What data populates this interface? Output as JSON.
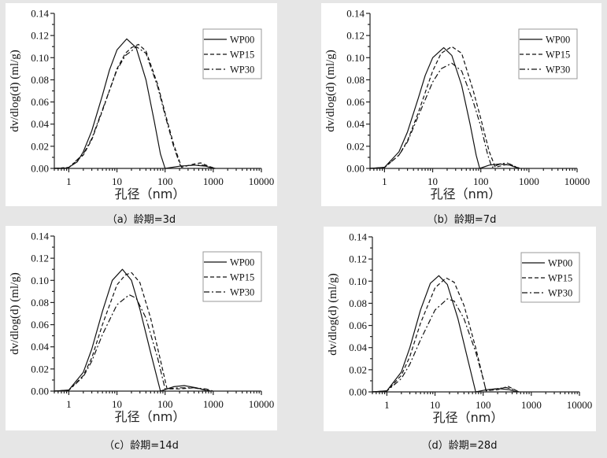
{
  "chart_data": [
    {
      "type": "line",
      "caption": "（a）龄期=3d",
      "xlabel": "孔径（nm）",
      "ylabel": "dv/dlog(d) (ml/g)",
      "xscale": "log",
      "xlim": [
        0.5,
        10000
      ],
      "ylim": [
        0,
        0.14
      ],
      "xticks": [
        "1",
        "10",
        "100",
        "1000",
        "10000"
      ],
      "yticks": [
        "0.00",
        "0.02",
        "0.04",
        "0.06",
        "0.08",
        "0.10",
        "0.12",
        "0.14"
      ],
      "legend_position": "top-right",
      "series": [
        {
          "name": "WP00",
          "style": "solid",
          "points": [
            [
              0.5,
              0
            ],
            [
              0.8,
              0
            ],
            [
              1,
              0.001
            ],
            [
              1.5,
              0.006
            ],
            [
              2,
              0.015
            ],
            [
              3,
              0.034
            ],
            [
              5,
              0.066
            ],
            [
              7,
              0.089
            ],
            [
              10,
              0.107
            ],
            [
              16,
              0.117
            ],
            [
              25,
              0.109
            ],
            [
              40,
              0.08
            ],
            [
              60,
              0.042
            ],
            [
              80,
              0.013
            ],
            [
              100,
              0
            ],
            [
              200,
              0.002
            ],
            [
              400,
              0.003
            ],
            [
              700,
              0.002
            ],
            [
              1000,
              0
            ]
          ]
        },
        {
          "name": "WP15",
          "style": "dash",
          "points": [
            [
              0.5,
              0
            ],
            [
              1,
              0.0008
            ],
            [
              2,
              0.012
            ],
            [
              3,
              0.026
            ],
            [
              5,
              0.052
            ],
            [
              10,
              0.09
            ],
            [
              15,
              0.104
            ],
            [
              20,
              0.109
            ],
            [
              28,
              0.112
            ],
            [
              40,
              0.106
            ],
            [
              70,
              0.076
            ],
            [
              100,
              0.05
            ],
            [
              150,
              0.022
            ],
            [
              220,
              0.001
            ],
            [
              400,
              0.004
            ],
            [
              550,
              0.005
            ],
            [
              800,
              0.002
            ],
            [
              1100,
              0
            ]
          ]
        },
        {
          "name": "WP30",
          "style": "dashdot",
          "points": [
            [
              0.5,
              0
            ],
            [
              1,
              0.0008
            ],
            [
              2,
              0.013
            ],
            [
              3,
              0.027
            ],
            [
              5,
              0.053
            ],
            [
              10,
              0.089
            ],
            [
              15,
              0.102
            ],
            [
              20,
              0.106
            ],
            [
              25,
              0.11
            ],
            [
              40,
              0.104
            ],
            [
              70,
              0.074
            ],
            [
              100,
              0.048
            ],
            [
              150,
              0.02
            ],
            [
              210,
              0.002
            ],
            [
              400,
              0.003
            ],
            [
              600,
              0.003
            ],
            [
              900,
              0.001
            ],
            [
              1100,
              0
            ]
          ]
        }
      ]
    },
    {
      "type": "line",
      "caption": "（b）龄期=7d",
      "xlabel": "孔径（nm）",
      "ylabel": "dv/dlog(d) (ml/g)",
      "xscale": "log",
      "xlim": [
        0.5,
        10000
      ],
      "ylim": [
        0,
        0.14
      ],
      "xticks": [
        "1",
        "10",
        "100",
        "1000",
        "10000"
      ],
      "yticks": [
        "0.00",
        "0.02",
        "0.04",
        "0.06",
        "0.08",
        "0.10",
        "0.12",
        "0.14"
      ],
      "legend_position": "top-right",
      "series": [
        {
          "name": "WP00",
          "style": "solid",
          "points": [
            [
              0.5,
              0
            ],
            [
              1,
              0.001
            ],
            [
              2,
              0.015
            ],
            [
              3,
              0.033
            ],
            [
              5,
              0.063
            ],
            [
              7,
              0.084
            ],
            [
              10,
              0.1
            ],
            [
              17,
              0.109
            ],
            [
              25,
              0.102
            ],
            [
              40,
              0.075
            ],
            [
              60,
              0.04
            ],
            [
              80,
              0.012
            ],
            [
              95,
              0
            ],
            [
              150,
              0.003
            ],
            [
              250,
              0.004
            ],
            [
              400,
              0.003
            ],
            [
              600,
              0
            ]
          ]
        },
        {
          "name": "WP15",
          "style": "dash",
          "points": [
            [
              0.5,
              0
            ],
            [
              1,
              0.0008
            ],
            [
              2,
              0.012
            ],
            [
              3,
              0.025
            ],
            [
              5,
              0.05
            ],
            [
              10,
              0.088
            ],
            [
              15,
              0.104
            ],
            [
              25,
              0.11
            ],
            [
              40,
              0.104
            ],
            [
              70,
              0.07
            ],
            [
              100,
              0.045
            ],
            [
              150,
              0.015
            ],
            [
              200,
              0.001
            ],
            [
              300,
              0.003
            ],
            [
              400,
              0.004
            ],
            [
              550,
              0.001
            ],
            [
              700,
              0
            ]
          ]
        },
        {
          "name": "WP30",
          "style": "dashdot",
          "points": [
            [
              0.5,
              0
            ],
            [
              1,
              0.0008
            ],
            [
              2,
              0.012
            ],
            [
              3,
              0.024
            ],
            [
              5,
              0.047
            ],
            [
              10,
              0.078
            ],
            [
              15,
              0.09
            ],
            [
              25,
              0.095
            ],
            [
              40,
              0.088
            ],
            [
              70,
              0.06
            ],
            [
              100,
              0.038
            ],
            [
              140,
              0.012
            ],
            [
              170,
              0.001
            ],
            [
              250,
              0.004
            ],
            [
              350,
              0.005
            ],
            [
              500,
              0.002
            ],
            [
              650,
              0
            ]
          ]
        }
      ]
    },
    {
      "type": "line",
      "caption": "（c）龄期=14d",
      "xlabel": "孔径（nm）",
      "ylabel": "dv/dlog(d) (ml/g)",
      "xscale": "log",
      "xlim": [
        0.5,
        10000
      ],
      "ylim": [
        0,
        0.14
      ],
      "xticks": [
        "1",
        "10",
        "100",
        "1000",
        "10000"
      ],
      "yticks": [
        "0.00",
        "0.02",
        "0.04",
        "0.06",
        "0.08",
        "0.10",
        "0.12",
        "0.14"
      ],
      "legend_position": "top-right",
      "series": [
        {
          "name": "WP00",
          "style": "solid",
          "points": [
            [
              0.5,
              0
            ],
            [
              1,
              0.001
            ],
            [
              2,
              0.017
            ],
            [
              3,
              0.038
            ],
            [
              5,
              0.072
            ],
            [
              8,
              0.1
            ],
            [
              13,
              0.11
            ],
            [
              20,
              0.1
            ],
            [
              30,
              0.074
            ],
            [
              50,
              0.035
            ],
            [
              70,
              0.01
            ],
            [
              80,
              0
            ],
            [
              150,
              0.004
            ],
            [
              250,
              0.005
            ],
            [
              450,
              0.003
            ],
            [
              800,
              0
            ]
          ]
        },
        {
          "name": "WP15",
          "style": "dash",
          "points": [
            [
              0.5,
              0
            ],
            [
              1,
              0.0008
            ],
            [
              2,
              0.014
            ],
            [
              3,
              0.03
            ],
            [
              5,
              0.06
            ],
            [
              10,
              0.096
            ],
            [
              15,
              0.105
            ],
            [
              20,
              0.107
            ],
            [
              30,
              0.098
            ],
            [
              50,
              0.066
            ],
            [
              80,
              0.028
            ],
            [
              110,
              0.002
            ],
            [
              200,
              0.002
            ],
            [
              400,
              0.003
            ],
            [
              700,
              0.001
            ],
            [
              900,
              0
            ]
          ]
        },
        {
          "name": "WP30",
          "style": "dashdot",
          "points": [
            [
              0.5,
              0
            ],
            [
              1,
              0.0008
            ],
            [
              2,
              0.013
            ],
            [
              3,
              0.027
            ],
            [
              5,
              0.051
            ],
            [
              10,
              0.078
            ],
            [
              18,
              0.087
            ],
            [
              25,
              0.084
            ],
            [
              40,
              0.066
            ],
            [
              70,
              0.03
            ],
            [
              100,
              0.002
            ],
            [
              200,
              0.003
            ],
            [
              400,
              0.003
            ],
            [
              700,
              0.002
            ],
            [
              1000,
              0
            ]
          ]
        }
      ]
    },
    {
      "type": "line",
      "caption": "（d）龄期=28d",
      "xlabel": "孔径（nm）",
      "ylabel": "dv/dlog(d) (ml/g)",
      "xscale": "log",
      "xlim": [
        0.5,
        10000
      ],
      "ylim": [
        0,
        0.14
      ],
      "xticks": [
        "1",
        "10",
        "100",
        "1000",
        "10000"
      ],
      "yticks": [
        "0.00",
        "0.02",
        "0.04",
        "0.06",
        "0.08",
        "0.10",
        "0.12",
        "0.14"
      ],
      "legend_position": "top-right",
      "series": [
        {
          "name": "WP00",
          "style": "solid",
          "points": [
            [
              0.5,
              0
            ],
            [
              1,
              0.001
            ],
            [
              2,
              0.018
            ],
            [
              3,
              0.04
            ],
            [
              5,
              0.074
            ],
            [
              8,
              0.098
            ],
            [
              12,
              0.105
            ],
            [
              18,
              0.097
            ],
            [
              30,
              0.066
            ],
            [
              50,
              0.026
            ],
            [
              70,
              0
            ],
            [
              120,
              0.002
            ],
            [
              200,
              0.003
            ],
            [
              350,
              0.002
            ],
            [
              500,
              0
            ]
          ]
        },
        {
          "name": "WP15",
          "style": "dash",
          "points": [
            [
              0.5,
              0
            ],
            [
              1,
              0.0008
            ],
            [
              2,
              0.015
            ],
            [
              3,
              0.032
            ],
            [
              5,
              0.062
            ],
            [
              10,
              0.094
            ],
            [
              17,
              0.103
            ],
            [
              25,
              0.099
            ],
            [
              40,
              0.078
            ],
            [
              70,
              0.04
            ],
            [
              100,
              0.012
            ],
            [
              115,
              0.001
            ],
            [
              200,
              0.002
            ],
            [
              330,
              0.005
            ],
            [
              450,
              0.002
            ],
            [
              550,
              0
            ]
          ]
        },
        {
          "name": "WP30",
          "style": "dashdot",
          "points": [
            [
              0.5,
              0
            ],
            [
              1,
              0.0008
            ],
            [
              2,
              0.012
            ],
            [
              3,
              0.025
            ],
            [
              5,
              0.047
            ],
            [
              10,
              0.074
            ],
            [
              18,
              0.084
            ],
            [
              25,
              0.082
            ],
            [
              40,
              0.066
            ],
            [
              70,
              0.036
            ],
            [
              100,
              0.012
            ],
            [
              115,
              0.001
            ],
            [
              200,
              0.003
            ],
            [
              300,
              0.004
            ],
            [
              450,
              0.002
            ],
            [
              550,
              0
            ]
          ]
        }
      ]
    }
  ]
}
